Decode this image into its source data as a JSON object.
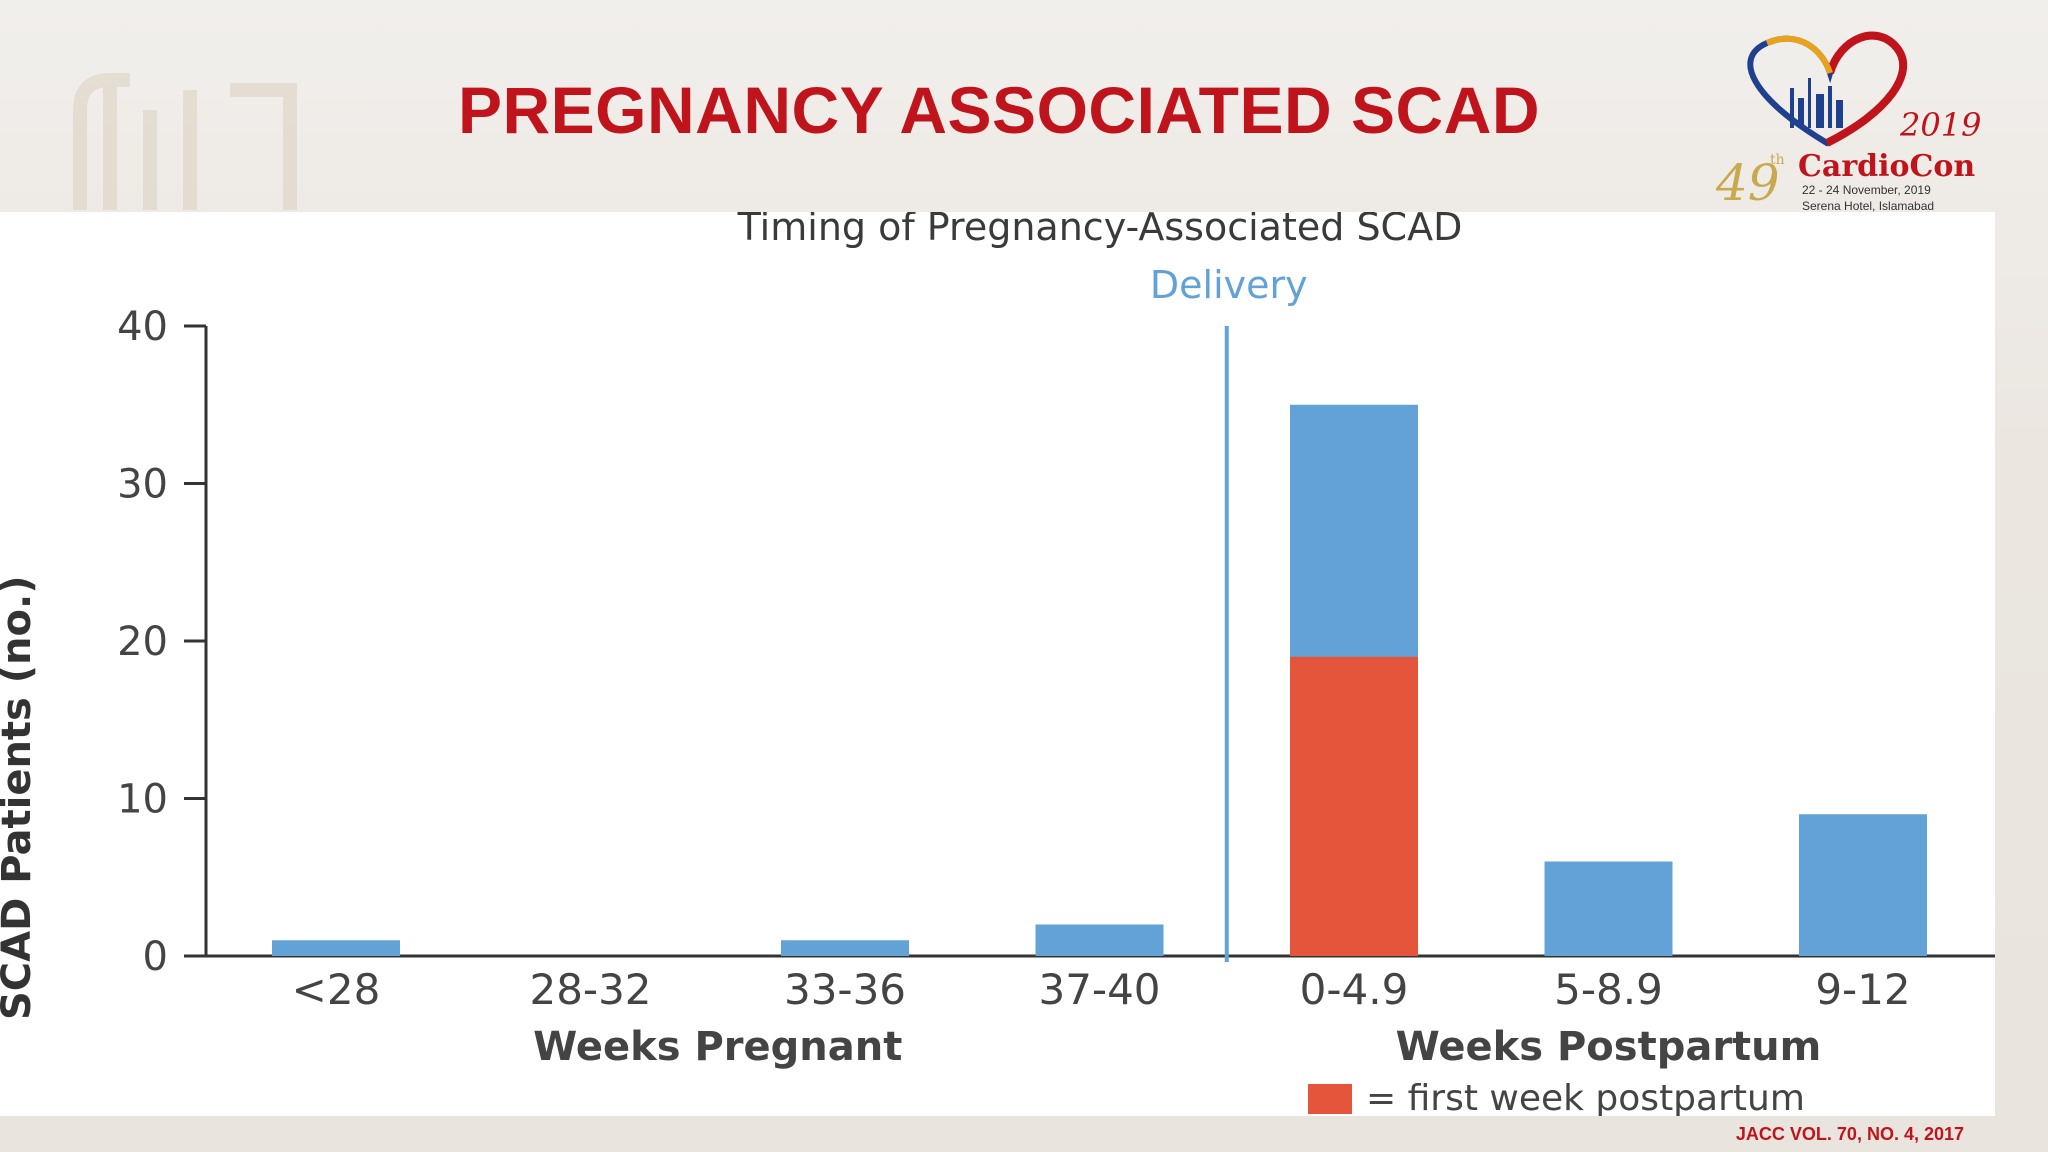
{
  "slide": {
    "title": "PREGNANCY ASSOCIATED SCAD",
    "citation": "JACC VOL. 70, NO. 4, 2017"
  },
  "logo": {
    "year": "2019",
    "edition": "49",
    "edition_suffix": "th",
    "name": "CardioCon",
    "dates": "22 - 24 November, 2019",
    "venue": "Serena Hotel, Islamabad",
    "colors": {
      "heart_red": "#c0141c",
      "heart_blue": "#1f3f8f",
      "heart_gold": "#e8a21c"
    }
  },
  "chart_data": {
    "type": "bar",
    "title": "Timing of Pregnancy-Associated SCAD",
    "ylabel": "SCAD Patients (no.)",
    "ylim": [
      0,
      40
    ],
    "yticks": [
      0,
      10,
      20,
      30,
      40
    ],
    "categories": [
      "<28",
      "28-32",
      "33-36",
      "37-40",
      "0-4.9",
      "5-8.9",
      "9-12"
    ],
    "group_labels": [
      {
        "label": "Weeks Pregnant",
        "categories": [
          "<28",
          "28-32",
          "33-36",
          "37-40"
        ]
      },
      {
        "label": "Weeks Postpartum",
        "categories": [
          "0-4.9",
          "5-8.9",
          "9-12"
        ]
      }
    ],
    "series": [
      {
        "values": [
          1,
          0,
          1,
          2,
          35,
          6,
          9
        ],
        "color": "#62a2d7"
      },
      {
        "name": "first week postpartum",
        "values": [
          0,
          0,
          0,
          0,
          19,
          0,
          0
        ],
        "color": "#e5553c"
      }
    ],
    "annotation": {
      "text": "Delivery",
      "between": [
        "37-40",
        "0-4.9"
      ],
      "color": "#62a2d7"
    },
    "legend": {
      "marker_color": "#e5553c",
      "text": "= first week postpartum",
      "placement": "bottom-right"
    },
    "grid": false
  }
}
